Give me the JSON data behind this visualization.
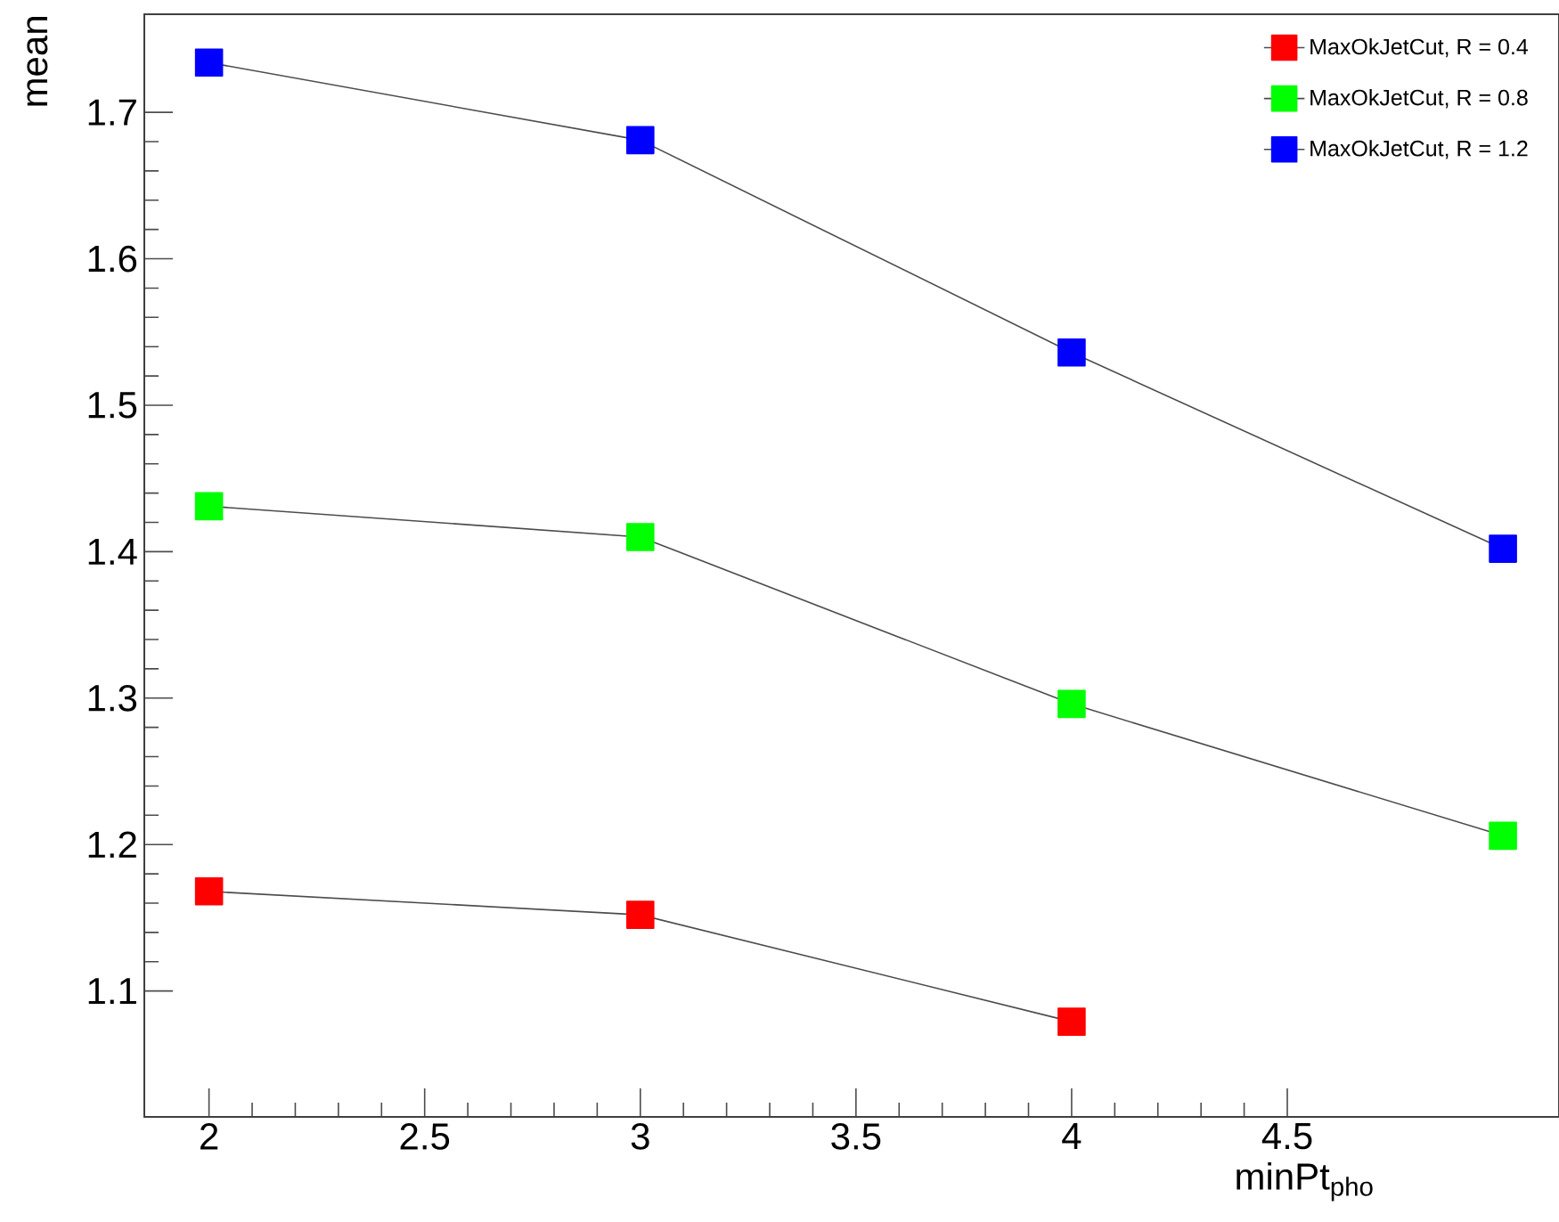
{
  "chart_data": {
    "type": "line",
    "xlabel": "minPt$_{pho}$",
    "ylabel": "mean",
    "x": [
      2,
      3,
      4,
      5
    ],
    "series": [
      {
        "name": "MaxOkJetCut, R = 0.4",
        "color": "#ff0000",
        "values": [
          1.168,
          1.152,
          1.079,
          null
        ]
      },
      {
        "name": "MaxOkJetCut, R = 0.8",
        "color": "#00ff00",
        "values": [
          1.431,
          1.41,
          1.296,
          1.206
        ]
      },
      {
        "name": "MaxOkJetCut, R = 1.2",
        "color": "#0000ff",
        "values": [
          1.734,
          1.681,
          1.536,
          1.402
        ]
      }
    ],
    "xlim": [
      1.85,
      5.13
    ],
    "ylim": [
      1.014,
      1.767
    ],
    "xticks": [
      2,
      2.5,
      3,
      3.5,
      4,
      4.5
    ],
    "yticks": [
      1.1,
      1.2,
      1.3,
      1.4,
      1.5,
      1.6,
      1.7
    ],
    "marker": "square",
    "line_style": "solid",
    "legend": "top right",
    "grid": false
  }
}
